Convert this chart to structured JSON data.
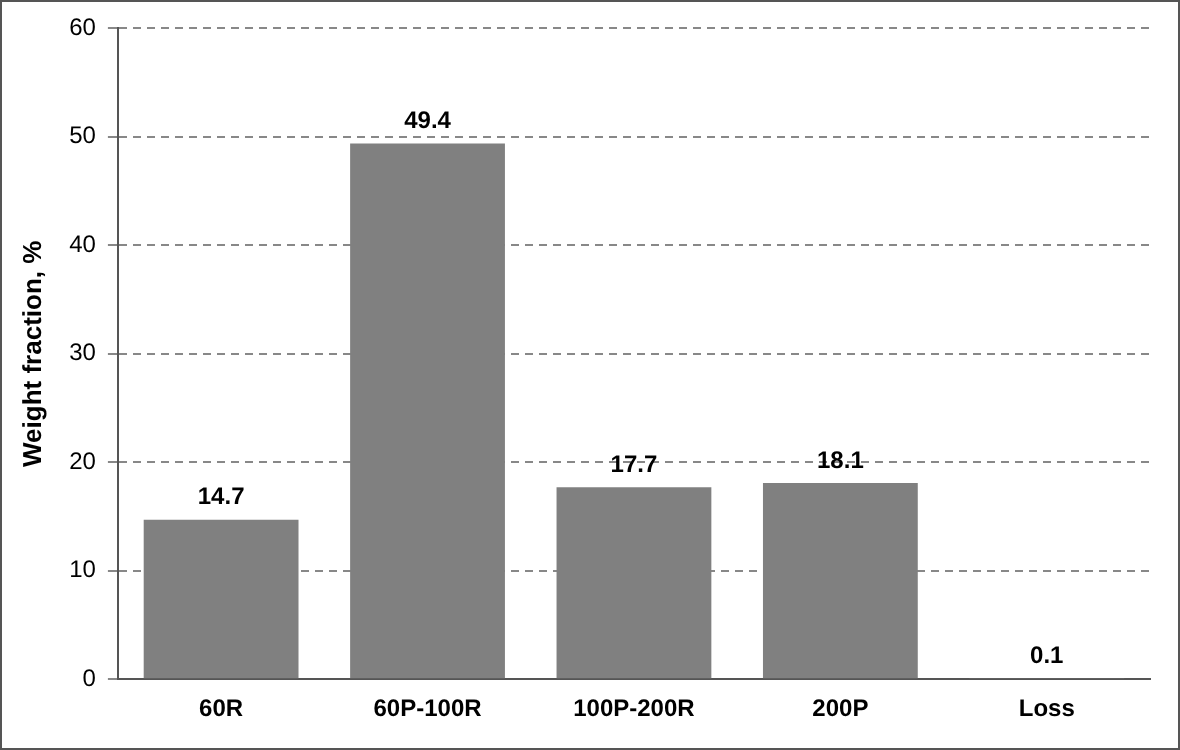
{
  "chart_data": {
    "type": "bar",
    "ylabel": "Weight fraction, %",
    "categories": [
      "60R",
      "60P-100R",
      "100P-200R",
      "200P",
      "Loss"
    ],
    "values": [
      14.7,
      49.4,
      17.7,
      18.1,
      0.1
    ],
    "color": "#808080",
    "ylim": [
      0,
      60
    ],
    "yticks": [
      0,
      10,
      20,
      30,
      40,
      50,
      60
    ],
    "grid": "y",
    "legend": false,
    "data_labels": true
  }
}
